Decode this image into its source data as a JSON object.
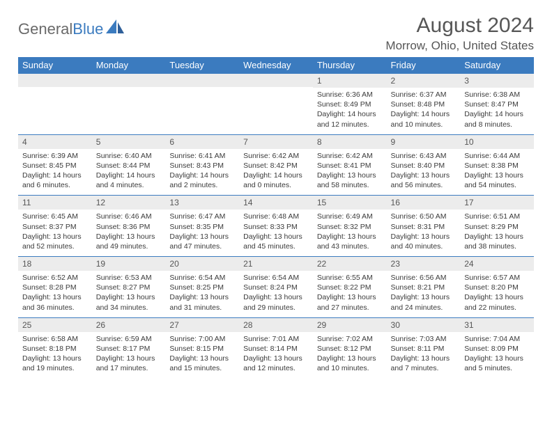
{
  "logo": {
    "part1": "General",
    "part2": "Blue"
  },
  "title": "August 2024",
  "location": "Morrow, Ohio, United States",
  "header_bg": "#3b7bbf",
  "weekdays": [
    "Sunday",
    "Monday",
    "Tuesday",
    "Wednesday",
    "Thursday",
    "Friday",
    "Saturday"
  ],
  "weeks": [
    [
      null,
      null,
      null,
      null,
      {
        "n": "1",
        "sr": "6:36 AM",
        "ss": "8:49 PM",
        "dl": "14 hours and 12 minutes."
      },
      {
        "n": "2",
        "sr": "6:37 AM",
        "ss": "8:48 PM",
        "dl": "14 hours and 10 minutes."
      },
      {
        "n": "3",
        "sr": "6:38 AM",
        "ss": "8:47 PM",
        "dl": "14 hours and 8 minutes."
      }
    ],
    [
      {
        "n": "4",
        "sr": "6:39 AM",
        "ss": "8:45 PM",
        "dl": "14 hours and 6 minutes."
      },
      {
        "n": "5",
        "sr": "6:40 AM",
        "ss": "8:44 PM",
        "dl": "14 hours and 4 minutes."
      },
      {
        "n": "6",
        "sr": "6:41 AM",
        "ss": "8:43 PM",
        "dl": "14 hours and 2 minutes."
      },
      {
        "n": "7",
        "sr": "6:42 AM",
        "ss": "8:42 PM",
        "dl": "14 hours and 0 minutes."
      },
      {
        "n": "8",
        "sr": "6:42 AM",
        "ss": "8:41 PM",
        "dl": "13 hours and 58 minutes."
      },
      {
        "n": "9",
        "sr": "6:43 AM",
        "ss": "8:40 PM",
        "dl": "13 hours and 56 minutes."
      },
      {
        "n": "10",
        "sr": "6:44 AM",
        "ss": "8:38 PM",
        "dl": "13 hours and 54 minutes."
      }
    ],
    [
      {
        "n": "11",
        "sr": "6:45 AM",
        "ss": "8:37 PM",
        "dl": "13 hours and 52 minutes."
      },
      {
        "n": "12",
        "sr": "6:46 AM",
        "ss": "8:36 PM",
        "dl": "13 hours and 49 minutes."
      },
      {
        "n": "13",
        "sr": "6:47 AM",
        "ss": "8:35 PM",
        "dl": "13 hours and 47 minutes."
      },
      {
        "n": "14",
        "sr": "6:48 AM",
        "ss": "8:33 PM",
        "dl": "13 hours and 45 minutes."
      },
      {
        "n": "15",
        "sr": "6:49 AM",
        "ss": "8:32 PM",
        "dl": "13 hours and 43 minutes."
      },
      {
        "n": "16",
        "sr": "6:50 AM",
        "ss": "8:31 PM",
        "dl": "13 hours and 40 minutes."
      },
      {
        "n": "17",
        "sr": "6:51 AM",
        "ss": "8:29 PM",
        "dl": "13 hours and 38 minutes."
      }
    ],
    [
      {
        "n": "18",
        "sr": "6:52 AM",
        "ss": "8:28 PM",
        "dl": "13 hours and 36 minutes."
      },
      {
        "n": "19",
        "sr": "6:53 AM",
        "ss": "8:27 PM",
        "dl": "13 hours and 34 minutes."
      },
      {
        "n": "20",
        "sr": "6:54 AM",
        "ss": "8:25 PM",
        "dl": "13 hours and 31 minutes."
      },
      {
        "n": "21",
        "sr": "6:54 AM",
        "ss": "8:24 PM",
        "dl": "13 hours and 29 minutes."
      },
      {
        "n": "22",
        "sr": "6:55 AM",
        "ss": "8:22 PM",
        "dl": "13 hours and 27 minutes."
      },
      {
        "n": "23",
        "sr": "6:56 AM",
        "ss": "8:21 PM",
        "dl": "13 hours and 24 minutes."
      },
      {
        "n": "24",
        "sr": "6:57 AM",
        "ss": "8:20 PM",
        "dl": "13 hours and 22 minutes."
      }
    ],
    [
      {
        "n": "25",
        "sr": "6:58 AM",
        "ss": "8:18 PM",
        "dl": "13 hours and 19 minutes."
      },
      {
        "n": "26",
        "sr": "6:59 AM",
        "ss": "8:17 PM",
        "dl": "13 hours and 17 minutes."
      },
      {
        "n": "27",
        "sr": "7:00 AM",
        "ss": "8:15 PM",
        "dl": "13 hours and 15 minutes."
      },
      {
        "n": "28",
        "sr": "7:01 AM",
        "ss": "8:14 PM",
        "dl": "13 hours and 12 minutes."
      },
      {
        "n": "29",
        "sr": "7:02 AM",
        "ss": "8:12 PM",
        "dl": "13 hours and 10 minutes."
      },
      {
        "n": "30",
        "sr": "7:03 AM",
        "ss": "8:11 PM",
        "dl": "13 hours and 7 minutes."
      },
      {
        "n": "31",
        "sr": "7:04 AM",
        "ss": "8:09 PM",
        "dl": "13 hours and 5 minutes."
      }
    ]
  ],
  "labels": {
    "sunrise": "Sunrise:",
    "sunset": "Sunset:",
    "daylight": "Daylight:"
  }
}
